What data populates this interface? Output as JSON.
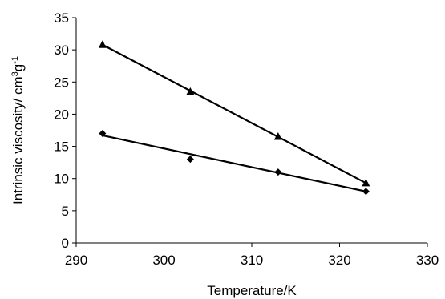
{
  "chart_data": {
    "type": "scatter",
    "xlabel": "Temperature/K",
    "ylabel": {
      "base": "Intrinsic viscosity/ cm",
      "sup1": "3",
      "mid": "g",
      "sup2": "-1"
    },
    "xlim": [
      290,
      330
    ],
    "ylim": [
      0,
      35
    ],
    "xticks": [
      290,
      300,
      310,
      320,
      330
    ],
    "yticks": [
      0,
      5,
      10,
      15,
      20,
      25,
      30,
      35
    ],
    "grid": false,
    "legend": "none",
    "series": [
      {
        "marker": "triangle",
        "color": "#000000",
        "x": [
          293,
          303,
          313,
          323
        ],
        "y": [
          30.8,
          23.5,
          16.5,
          9.3
        ],
        "fit": [
          [
            293,
            30.8
          ],
          [
            323,
            9.3
          ]
        ]
      },
      {
        "marker": "diamond",
        "color": "#000000",
        "x": [
          293,
          303,
          313,
          323
        ],
        "y": [
          17,
          13,
          11,
          8
        ],
        "fit": [
          [
            293,
            16.7
          ],
          [
            323,
            8.0
          ]
        ]
      }
    ]
  }
}
